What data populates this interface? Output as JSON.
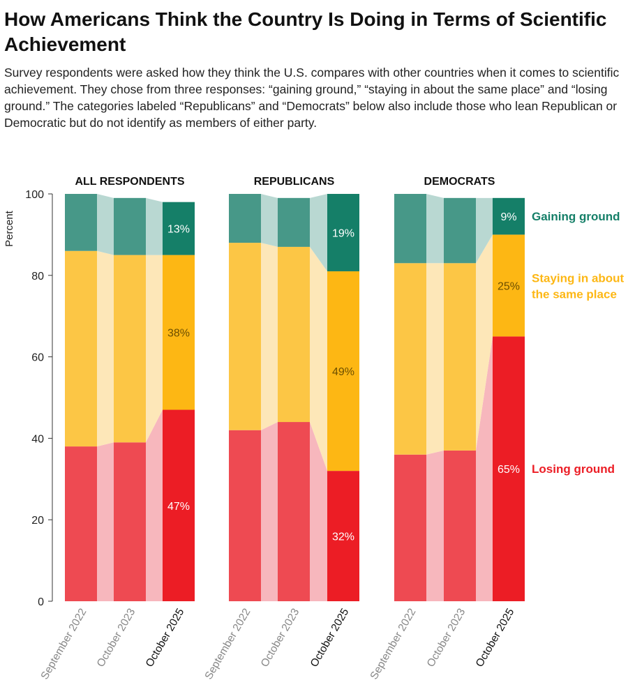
{
  "chart_data": {
    "type": "bar",
    "stacked": true,
    "title": "How Americans Think the Country Is Doing in Terms of Scientific Achievement",
    "subtitle": "Survey respondents were asked how they think the U.S. compares with other countries when it comes to scientific achievement. They chose from three responses: “gaining ground,” “staying in about the same place” and “losing ground.” The categories labeled “Republicans” and “Democrats” below also include those who lean Republican or Democratic but do not identify as members of either party.",
    "ylabel": "Percent",
    "ylim": [
      0,
      100
    ],
    "yticks": [
      0,
      20,
      40,
      60,
      80,
      100
    ],
    "categories": [
      "September 2022",
      "October 2023",
      "October 2025"
    ],
    "series_names": [
      "Losing ground",
      "Staying in about the same place",
      "Gaining ground"
    ],
    "series_labels": [
      "Losing ground",
      "Staying in about\nthe same place",
      "Gaining ground"
    ],
    "colors": {
      "gaining": "#157f68",
      "gaining_old": "#479888",
      "gaining_band": "#b9d8d2",
      "staying": "#fdb714",
      "staying_old": "#fcc645",
      "staying_band": "#fde7b8",
      "losing": "#ec1d25",
      "losing_old": "#ee4a52",
      "losing_band": "#f7b7bd"
    },
    "panels": [
      {
        "title": "ALL RESPONDENTS",
        "losing": [
          38,
          39,
          47
        ],
        "staying": [
          48,
          46,
          38
        ],
        "gaining": [
          14,
          14,
          13
        ],
        "labels": [
          "47%",
          "38%",
          "13%"
        ]
      },
      {
        "title": "REPUBLICANS",
        "losing": [
          42,
          44,
          32
        ],
        "staying": [
          46,
          43,
          49
        ],
        "gaining": [
          12,
          12,
          19
        ],
        "labels": [
          "32%",
          "49%",
          "19%"
        ]
      },
      {
        "title": "DEMOCRATS",
        "losing": [
          36,
          37,
          65
        ],
        "staying": [
          47,
          46,
          25
        ],
        "gaining": [
          17,
          16,
          9
        ],
        "labels": [
          "65%",
          "25%",
          "9%"
        ]
      }
    ]
  }
}
